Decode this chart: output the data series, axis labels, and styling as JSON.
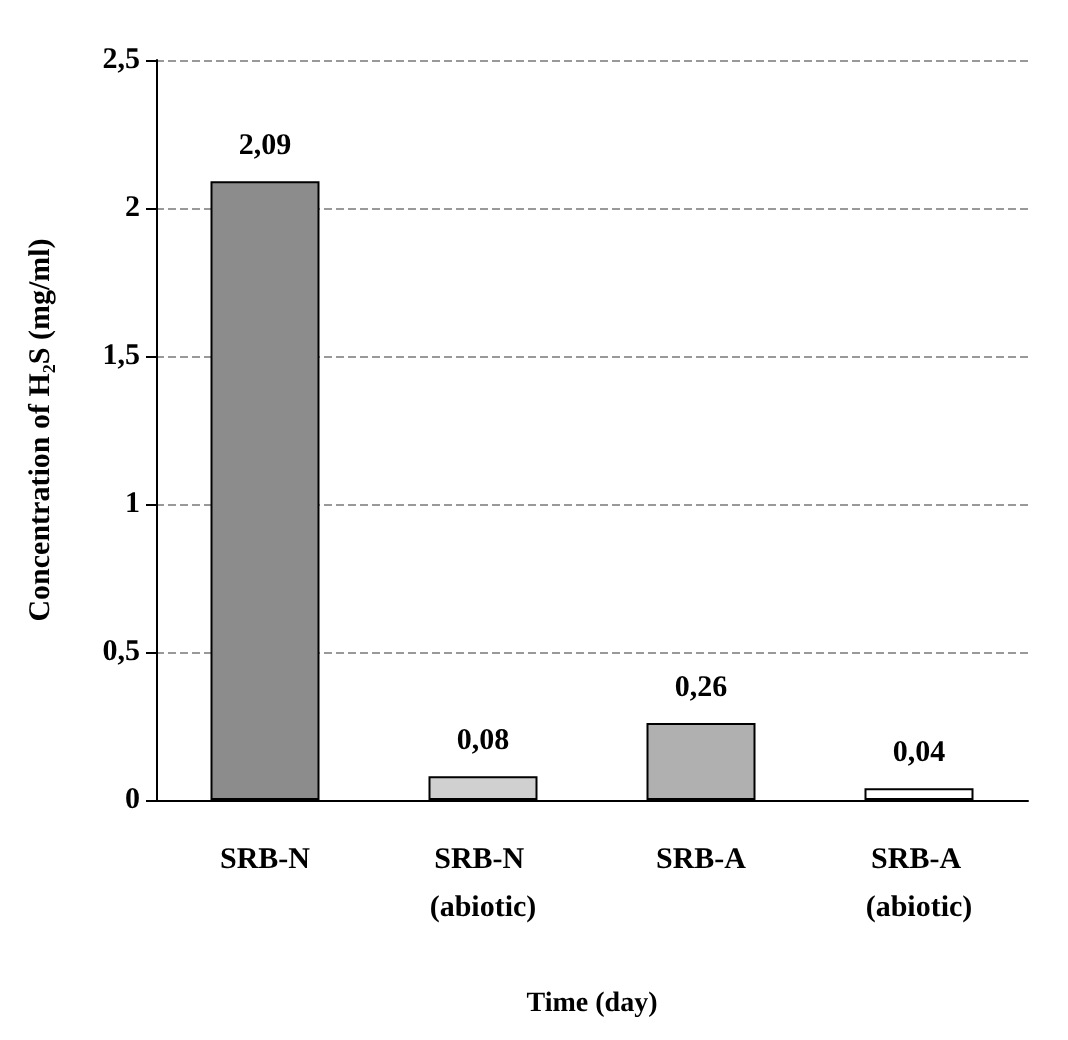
{
  "chart_data": {
    "type": "bar",
    "xlabel": "Time (day)",
    "ylabel": "Concentration of H₂S (mg/ml)",
    "categories": [
      "SRB-N",
      "SRB-N (abiotic)",
      "SRB-A",
      "SRB-A (abiotic)"
    ],
    "values": [
      2.09,
      0.08,
      0.26,
      0.04
    ],
    "value_labels": [
      "2,09",
      "0,08",
      "0,26",
      "0,04"
    ],
    "colors": [
      "#8c8c8c",
      "#d0d0d0",
      "#b0b0b0",
      "#ffffff"
    ],
    "ylim": [
      0,
      2.5
    ],
    "yticks": [
      0,
      {
        "value": 0.5,
        "label": "0,5"
      },
      1,
      {
        "value": 1.5,
        "label": "1,5"
      },
      2,
      {
        "value": 2.5,
        "label": "2,5"
      }
    ],
    "grid": "y"
  }
}
